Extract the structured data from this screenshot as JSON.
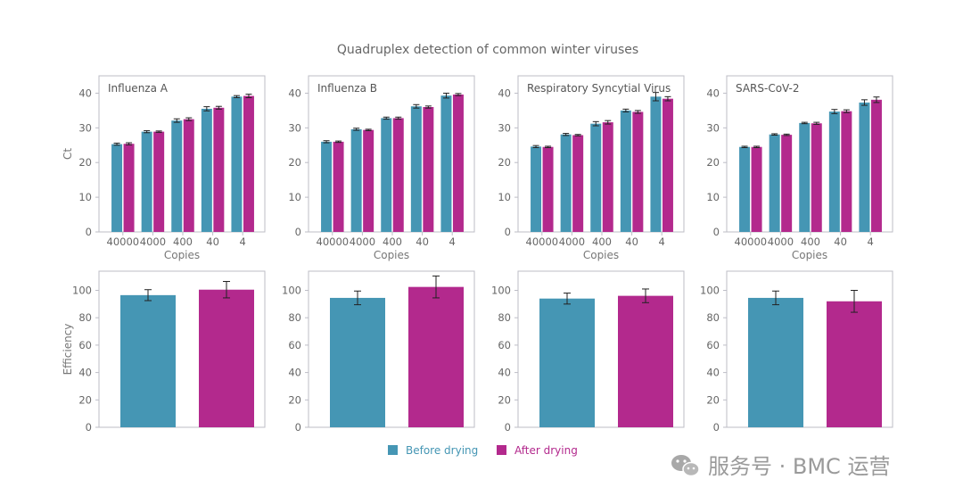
{
  "chart_title": "Quadruplex detection of common winter viruses",
  "colors": {
    "before": "#4596b4",
    "after": "#b3298d",
    "frame": "#bdbdc6",
    "error": "#222222"
  },
  "legend": [
    {
      "label": "Before drying",
      "color": "#4596b4"
    },
    {
      "label": "After drying",
      "color": "#b3298d"
    }
  ],
  "watermark": {
    "text": "服务号 · BMC 运营",
    "icon": "wechat-icon"
  },
  "chart_data": [
    {
      "type": "bar",
      "row": "ct",
      "panel": 1,
      "title": "Influenza A",
      "categories": [
        "40000",
        "4000",
        "400",
        "40",
        "4"
      ],
      "xlabel": "Copies",
      "ylabel": "Ct",
      "ylim": [
        0,
        45
      ],
      "yticks": [
        0,
        10,
        20,
        30,
        40
      ],
      "series": [
        {
          "name": "Before drying",
          "values": [
            25.3,
            28.9,
            32.1,
            35.5,
            39.0
          ],
          "errors": [
            0.3,
            0.3,
            0.5,
            0.6,
            0.3
          ]
        },
        {
          "name": "After drying",
          "values": [
            25.4,
            28.9,
            32.5,
            35.8,
            39.2
          ],
          "errors": [
            0.3,
            0.2,
            0.4,
            0.4,
            0.5
          ]
        }
      ]
    },
    {
      "type": "bar",
      "row": "ct",
      "panel": 2,
      "title": "Influenza B",
      "categories": [
        "40000",
        "4000",
        "400",
        "40",
        "4"
      ],
      "xlabel": "Copies",
      "ylabel": "",
      "ylim": [
        0,
        45
      ],
      "yticks": [
        0,
        10,
        20,
        30,
        40
      ],
      "series": [
        {
          "name": "Before drying",
          "values": [
            26.0,
            29.6,
            32.8,
            36.2,
            39.3
          ],
          "errors": [
            0.3,
            0.3,
            0.3,
            0.5,
            0.7
          ]
        },
        {
          "name": "After drying",
          "values": [
            26.0,
            29.4,
            32.8,
            36.0,
            39.6
          ],
          "errors": [
            0.2,
            0.2,
            0.3,
            0.3,
            0.3
          ]
        }
      ]
    },
    {
      "type": "bar",
      "row": "ct",
      "panel": 3,
      "title": "Respiratory Syncytial Virus",
      "categories": [
        "40000",
        "4000",
        "400",
        "40",
        "4"
      ],
      "xlabel": "Copies",
      "ylabel": "",
      "ylim": [
        0,
        45
      ],
      "yticks": [
        0,
        10,
        20,
        30,
        40
      ],
      "series": [
        {
          "name": "Before drying",
          "values": [
            24.6,
            28.1,
            31.2,
            35.0,
            39.0
          ],
          "errors": [
            0.3,
            0.3,
            0.6,
            0.4,
            1.2
          ]
        },
        {
          "name": "After drying",
          "values": [
            24.5,
            27.9,
            31.6,
            34.6,
            38.4
          ],
          "errors": [
            0.2,
            0.2,
            0.5,
            0.4,
            0.6
          ]
        }
      ]
    },
    {
      "type": "bar",
      "row": "ct",
      "panel": 4,
      "title": "SARS-CoV-2",
      "categories": [
        "40000",
        "4000",
        "400",
        "40",
        "4"
      ],
      "xlabel": "Copies",
      "ylabel": "",
      "ylim": [
        0,
        45
      ],
      "yticks": [
        0,
        10,
        20,
        30,
        40
      ],
      "series": [
        {
          "name": "Before drying",
          "values": [
            24.5,
            28.1,
            31.4,
            34.7,
            37.3
          ],
          "errors": [
            0.2,
            0.2,
            0.2,
            0.6,
            0.8
          ]
        },
        {
          "name": "After drying",
          "values": [
            24.5,
            28.0,
            31.3,
            34.8,
            38.1
          ],
          "errors": [
            0.2,
            0.2,
            0.3,
            0.4,
            0.8
          ]
        }
      ]
    },
    {
      "type": "bar",
      "row": "efficiency",
      "panel": 1,
      "categories": [
        "Before drying",
        "After drying"
      ],
      "xlabel": "",
      "ylabel": "Efficiency",
      "ylim": [
        0,
        114
      ],
      "yticks": [
        0,
        20,
        40,
        60,
        80,
        100
      ],
      "values": [
        96.5,
        100.5
      ],
      "errors": [
        4.0,
        6.0
      ]
    },
    {
      "type": "bar",
      "row": "efficiency",
      "panel": 2,
      "categories": [
        "Before drying",
        "After drying"
      ],
      "xlabel": "",
      "ylabel": "",
      "ylim": [
        0,
        114
      ],
      "yticks": [
        0,
        20,
        40,
        60,
        80,
        100
      ],
      "values": [
        94.5,
        102.5
      ],
      "errors": [
        5.0,
        8.0
      ]
    },
    {
      "type": "bar",
      "row": "efficiency",
      "panel": 3,
      "categories": [
        "Before drying",
        "After drying"
      ],
      "xlabel": "",
      "ylabel": "",
      "ylim": [
        0,
        114
      ],
      "yticks": [
        0,
        20,
        40,
        60,
        80,
        100
      ],
      "values": [
        94.0,
        96.0
      ],
      "errors": [
        4.0,
        5.0
      ]
    },
    {
      "type": "bar",
      "row": "efficiency",
      "panel": 4,
      "categories": [
        "Before drying",
        "After drying"
      ],
      "xlabel": "",
      "ylabel": "",
      "ylim": [
        0,
        114
      ],
      "yticks": [
        0,
        20,
        40,
        60,
        80,
        100
      ],
      "values": [
        94.5,
        92.0
      ],
      "errors": [
        5.0,
        8.0
      ]
    }
  ]
}
